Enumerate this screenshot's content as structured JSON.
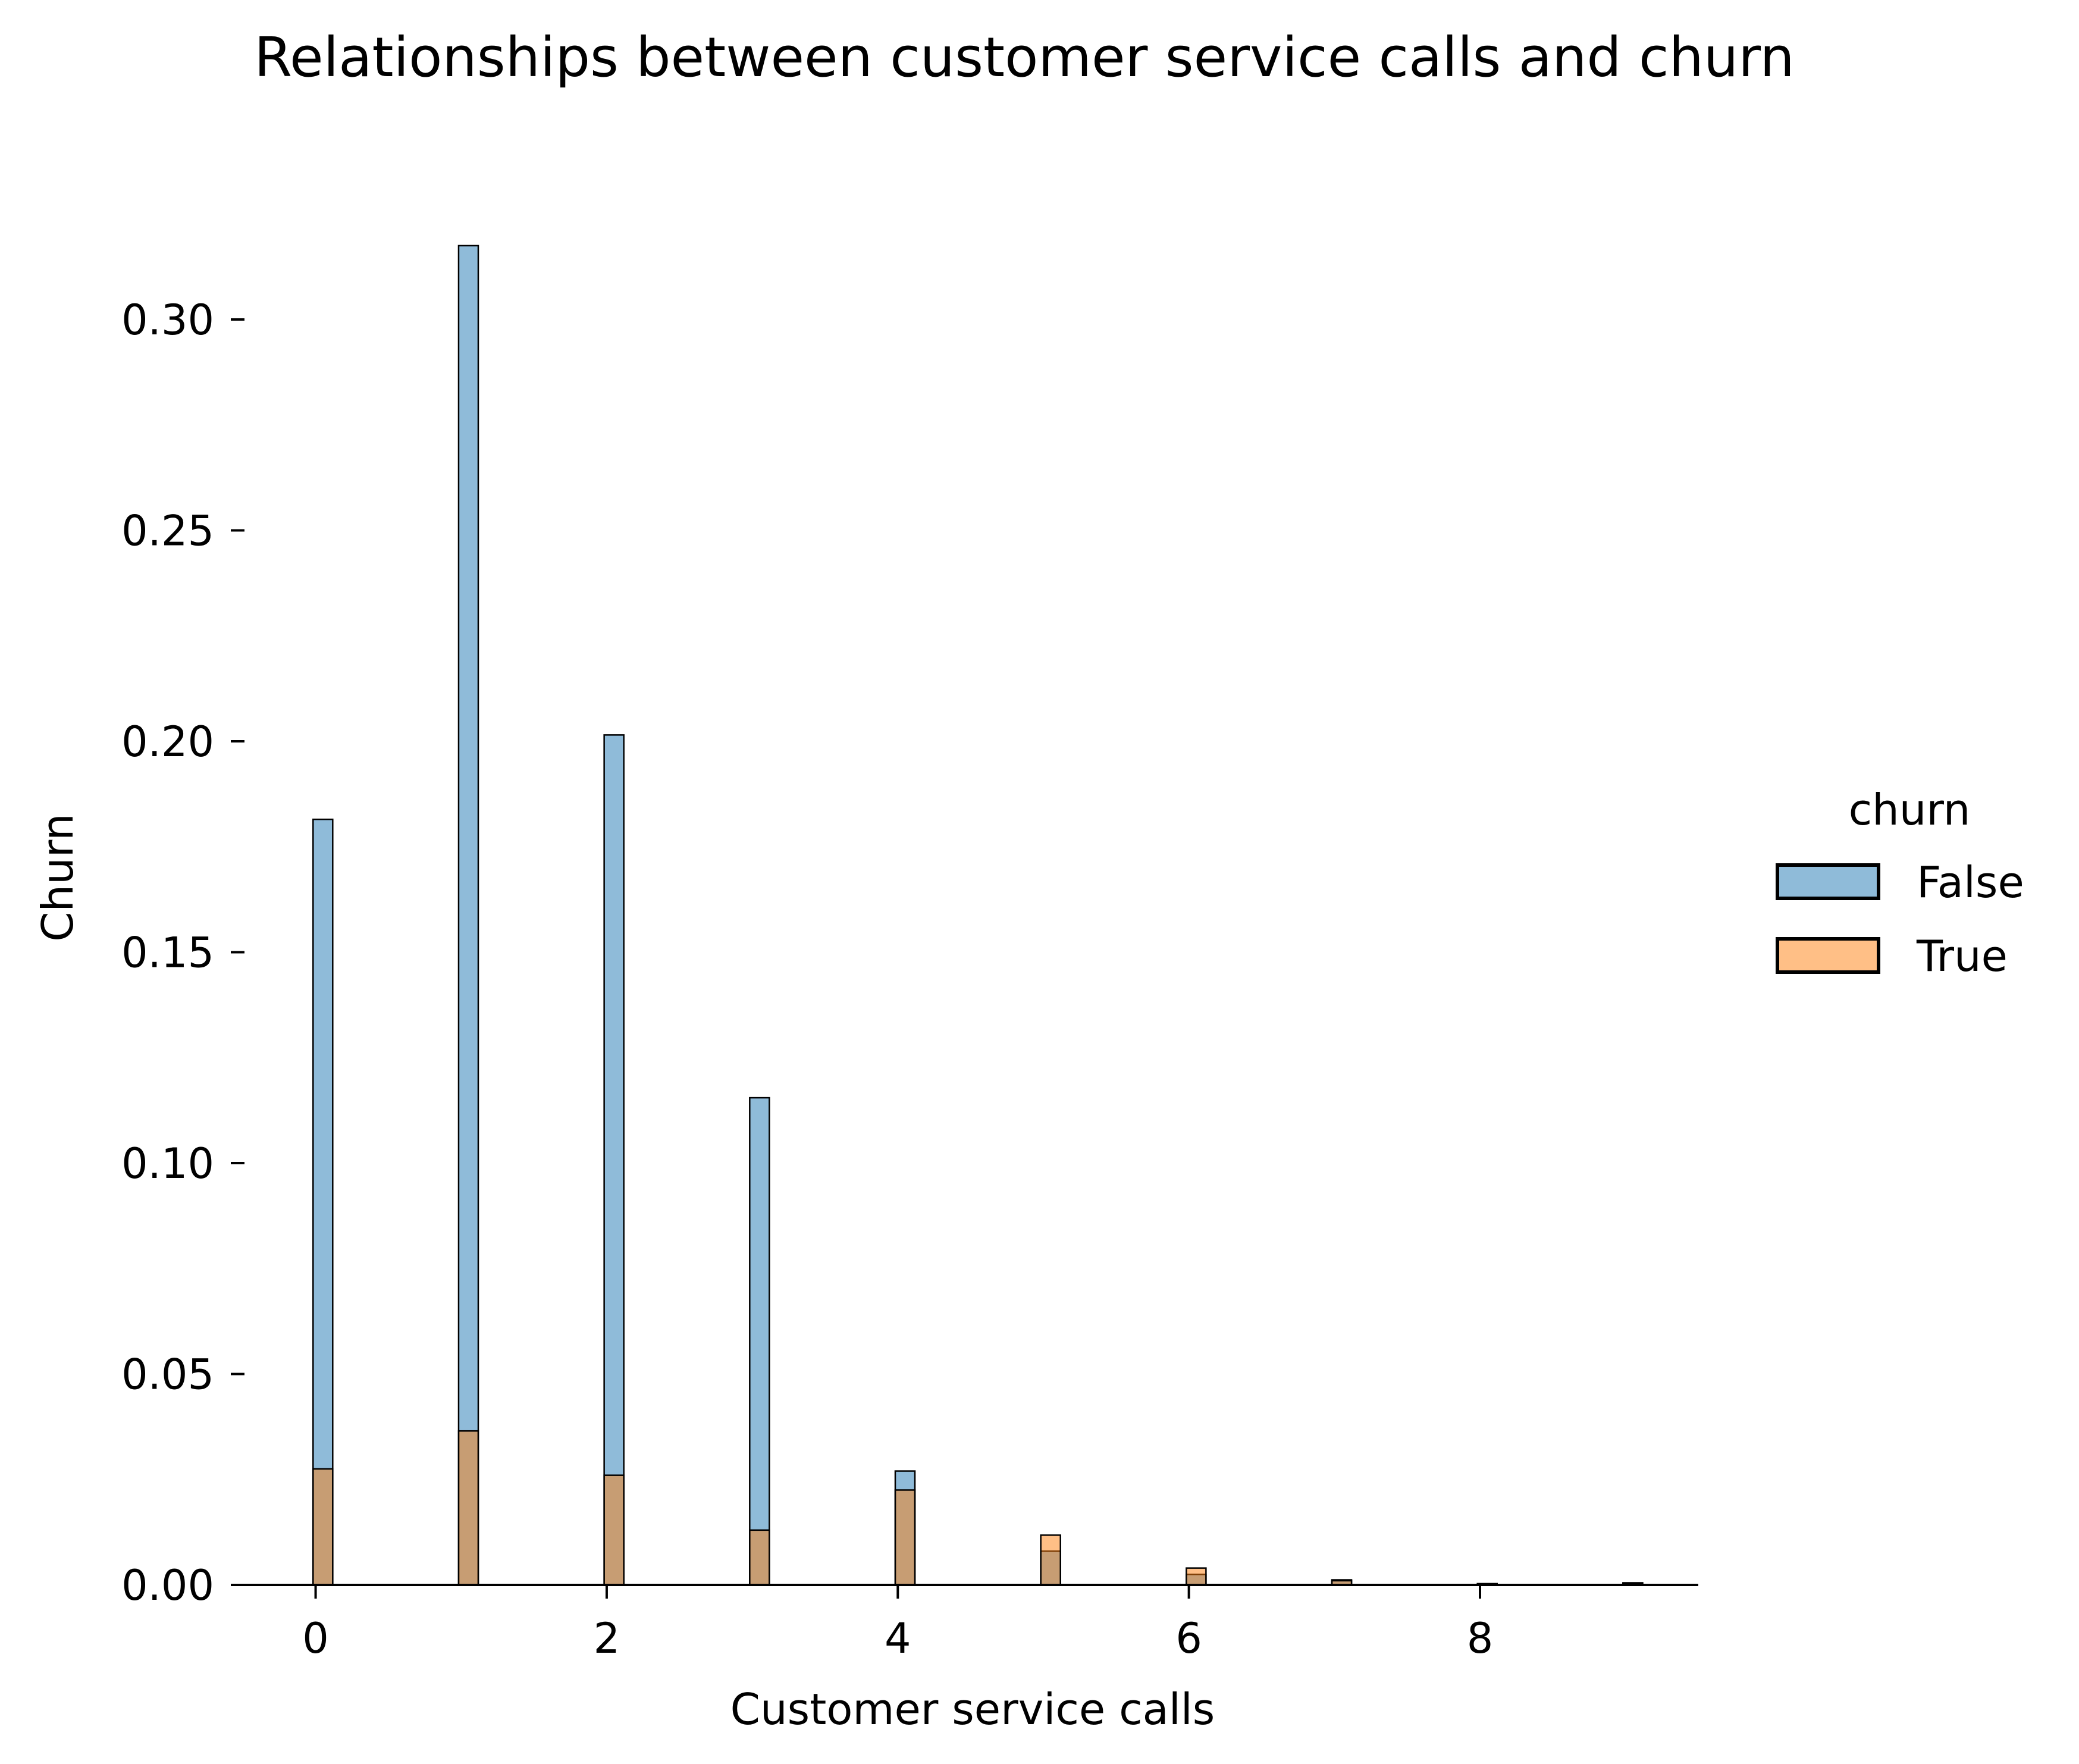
{
  "chart_data": {
    "type": "bar",
    "title": "Relationships between customer service calls and churn",
    "xlabel": "Customer service calls",
    "ylabel": "Churn",
    "xlim": [
      -0.55,
      9.5
    ],
    "ylim": [
      0,
      0.32
    ],
    "xticks": [
      0,
      2,
      4,
      6,
      8
    ],
    "yticks": [
      0.0,
      0.05,
      0.1,
      0.15,
      0.2,
      0.25,
      0.3
    ],
    "ytick_labels": [
      "0.00",
      "0.05",
      "0.10",
      "0.15",
      "0.20",
      "0.25",
      "0.30"
    ],
    "grid": false,
    "bar_width": 0.135,
    "x": [
      0,
      1,
      2,
      3,
      4,
      5,
      6,
      7,
      8,
      9
    ],
    "legend": {
      "title": "churn",
      "placement": "right"
    },
    "series": [
      {
        "name": "False",
        "color": "#1f77b4",
        "values": [
          0.1815,
          0.3175,
          0.2015,
          0.1155,
          0.027,
          0.008,
          0.0025,
          0.0012,
          0.0002,
          0.0005
        ]
      },
      {
        "name": "True",
        "color": "#ff7f0e",
        "values": [
          0.0275,
          0.0365,
          0.026,
          0.013,
          0.0225,
          0.0118,
          0.004,
          0.001,
          0.0003,
          0.0004
        ]
      }
    ]
  }
}
